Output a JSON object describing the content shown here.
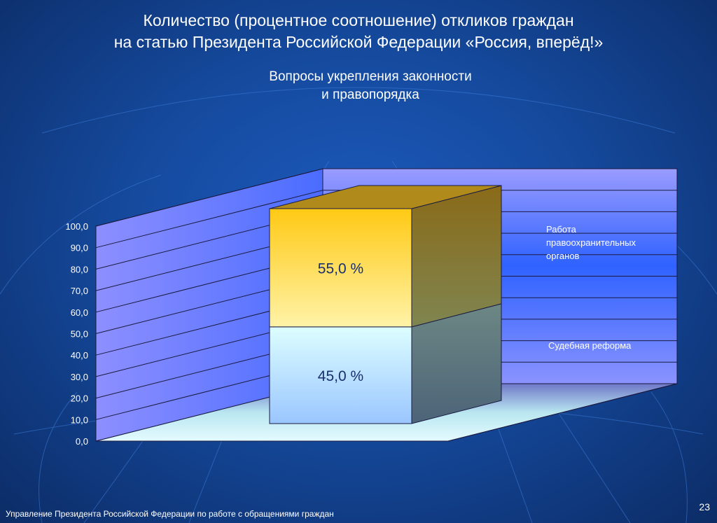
{
  "slide": {
    "title_line1": "Количество (процентное соотношение) откликов граждан",
    "title_line2": "на статью Президента Российской Федерации «Россия, вперёд!»",
    "subtitle_line1": "Вопросы укрепления законности",
    "subtitle_line2": "и правопорядка",
    "footer": "Управление Президента Российской Федерации по работе с обращениями граждан",
    "page_number": "23"
  },
  "chart_data": {
    "type": "bar",
    "stacked": true,
    "three_d": true,
    "categories": [
      ""
    ],
    "series": [
      {
        "name": "Судебная реформа",
        "values": [
          45.0
        ],
        "label": "45,0 %",
        "color": "#cdf6ff"
      },
      {
        "name": "Работа правоохранительных органов",
        "values": [
          55.0
        ],
        "label": "55,0 %",
        "color": "#ffcc11"
      }
    ],
    "ylim": [
      0,
      100
    ],
    "yticks": [
      "0,0",
      "10,0",
      "20,0",
      "30,0",
      "40,0",
      "50,0",
      "60,0",
      "70,0",
      "80,0",
      "90,0",
      "100,0"
    ],
    "grid": true,
    "legend": "right",
    "legend_label_work": "Работа правоохранительных органов",
    "legend_label_court": "Судебная реформа"
  }
}
